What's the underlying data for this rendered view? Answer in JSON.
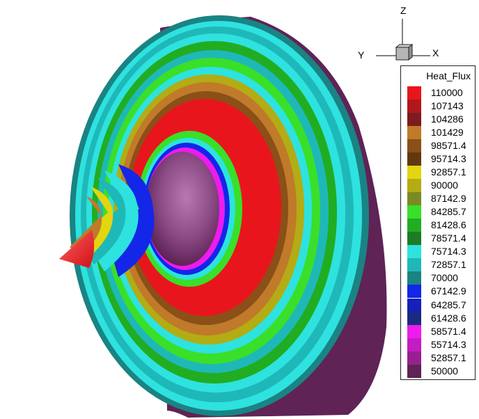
{
  "axes": {
    "z": "Z",
    "y": "Y",
    "x": "X"
  },
  "legend": {
    "title": "Heat_Flux",
    "levels": [
      {
        "label": "110000",
        "color": "#e8161c"
      },
      {
        "label": "107143",
        "color": "#b0181b"
      },
      {
        "label": "104286",
        "color": "#7d1b1f"
      },
      {
        "label": "101429",
        "color": "#c07a2a"
      },
      {
        "label": "98571.4",
        "color": "#8a5018"
      },
      {
        "label": "95714.3",
        "color": "#623810"
      },
      {
        "label": "92857.1",
        "color": "#e3d50f"
      },
      {
        "label": "90000",
        "color": "#b3ac14"
      },
      {
        "label": "87142.9",
        "color": "#7c8a24"
      },
      {
        "label": "84285.7",
        "color": "#3adf29"
      },
      {
        "label": "81428.6",
        "color": "#21ad22"
      },
      {
        "label": "78571.4",
        "color": "#1d7c25"
      },
      {
        "label": "75714.3",
        "color": "#2ee2df"
      },
      {
        "label": "72857.1",
        "color": "#1fb8b8"
      },
      {
        "label": "70000",
        "color": "#1a8383"
      },
      {
        "label": "67142.9",
        "color": "#1426e8"
      },
      {
        "label": "64285.7",
        "color": "#1520b8"
      },
      {
        "label": "61428.6",
        "color": "#1a2a80"
      },
      {
        "label": "58571.4",
        "color": "#ee1bee"
      },
      {
        "label": "55714.3",
        "color": "#c31cc2"
      },
      {
        "label": "52857.1",
        "color": "#962092"
      },
      {
        "label": "50000",
        "color": "#5f2356"
      }
    ]
  }
}
